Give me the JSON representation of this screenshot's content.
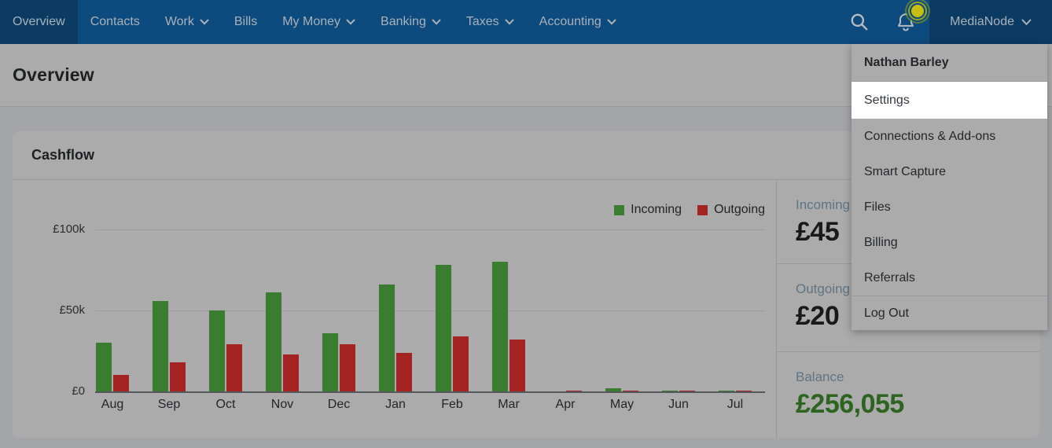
{
  "nav": {
    "items": [
      {
        "label": "Overview",
        "active": true,
        "dropdown": false
      },
      {
        "label": "Contacts",
        "active": false,
        "dropdown": false
      },
      {
        "label": "Work",
        "active": false,
        "dropdown": true
      },
      {
        "label": "Bills",
        "active": false,
        "dropdown": false
      },
      {
        "label": "My Money",
        "active": false,
        "dropdown": true
      },
      {
        "label": "Banking",
        "active": false,
        "dropdown": true
      },
      {
        "label": "Taxes",
        "active": false,
        "dropdown": true
      },
      {
        "label": "Accounting",
        "active": false,
        "dropdown": true
      }
    ],
    "account_label": "MediaNode",
    "icons": {
      "search": "magnifier",
      "notifications": "bell-with-beacon"
    }
  },
  "user_menu": {
    "header": "Nathan Barley",
    "items": [
      {
        "label": "Settings",
        "highlighted": true
      },
      {
        "label": "Connections & Add-ons"
      },
      {
        "label": "Smart Capture"
      },
      {
        "label": "Files"
      },
      {
        "label": "Billing"
      },
      {
        "label": "Referrals"
      },
      {
        "label": "Log Out",
        "separated": true
      }
    ]
  },
  "page": {
    "title": "Overview"
  },
  "card": {
    "title": "Cashflow"
  },
  "stats": {
    "incoming": {
      "label": "Incoming",
      "value": "£45"
    },
    "outgoing": {
      "label": "Outgoing",
      "value": "£20"
    },
    "balance": {
      "label": "Balance",
      "value": "£256,055"
    }
  },
  "chart_data": {
    "type": "bar",
    "title": "Cashflow",
    "categories": [
      "Aug",
      "Sep",
      "Oct",
      "Nov",
      "Dec",
      "Jan",
      "Feb",
      "Mar",
      "Apr",
      "May",
      "Jun",
      "Jul"
    ],
    "series": [
      {
        "name": "Incoming",
        "color": "#3a7d31",
        "values": [
          30,
          56,
          50,
          61,
          36,
          66,
          78,
          80,
          0,
          2,
          0.5,
          0.5
        ]
      },
      {
        "name": "Outgoing",
        "color": "#a32323",
        "values": [
          10,
          18,
          29,
          23,
          29,
          24,
          34,
          32,
          0.5,
          0.5,
          0.7,
          0.7
        ]
      }
    ],
    "unit": "thousand GBP",
    "ylim": [
      0,
      100
    ],
    "y_ticks": [
      {
        "label": "£100k",
        "value": 100
      },
      {
        "label": "£50k",
        "value": 50
      },
      {
        "label": "£0",
        "value": 0
      }
    ],
    "grid": true,
    "legend_position": "top-right"
  },
  "colors": {
    "nav_bg": "#0d4a7d",
    "nav_active_bg": "#0b3a63",
    "nav_text": "#a9b2ba",
    "page_header_bg": "#ababab",
    "page_bg": "#a3a5a8",
    "card_bg": "#ababab",
    "divider": "#97999c",
    "gridline": "#9b9da0",
    "baseline": "#55585a",
    "incoming_green": "#3a7d31",
    "outgoing_red": "#a32323",
    "balance_green": "#2d641f",
    "stat_label": "#5f7484",
    "stat_value": "#17191b",
    "menu_bg": "#ababab",
    "menu_highlight_bg": "#ffffff",
    "menu_text": "#23272b",
    "beacon_center": "#c8bd12",
    "beacon_ring": "#97a51d",
    "title_text": "#1d2023"
  }
}
